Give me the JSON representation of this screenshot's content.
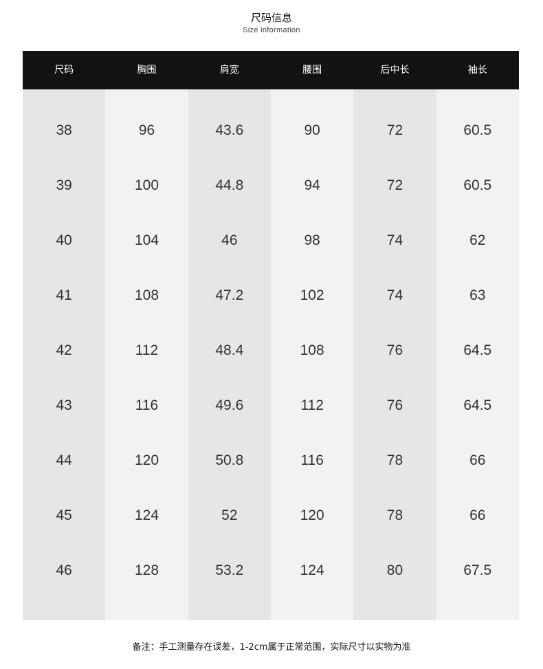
{
  "title": "尺码信息",
  "subtitle": "Size information",
  "columns": [
    "尺码",
    "胸围",
    "肩宽",
    "腰围",
    "后中长",
    "袖长"
  ],
  "rows": [
    [
      "38",
      "96",
      "43.6",
      "90",
      "72",
      "60.5"
    ],
    [
      "39",
      "100",
      "44.8",
      "94",
      "72",
      "60.5"
    ],
    [
      "40",
      "104",
      "46",
      "98",
      "74",
      "62"
    ],
    [
      "41",
      "108",
      "47.2",
      "102",
      "74",
      "63"
    ],
    [
      "42",
      "112",
      "48.4",
      "108",
      "76",
      "64.5"
    ],
    [
      "43",
      "116",
      "49.6",
      "112",
      "76",
      "64.5"
    ],
    [
      "44",
      "120",
      "50.8",
      "116",
      "78",
      "66"
    ],
    [
      "45",
      "124",
      "52",
      "120",
      "78",
      "66"
    ],
    [
      "46",
      "128",
      "53.2",
      "124",
      "80",
      "67.5"
    ]
  ],
  "note": "备注：手工测量存在误差，1-2cm属于正常范围，实际尺寸以实物为准",
  "colors": {
    "header_bg": "#121212",
    "column_dark": "#e6e6e6",
    "column_light": "#f2f2f2"
  }
}
